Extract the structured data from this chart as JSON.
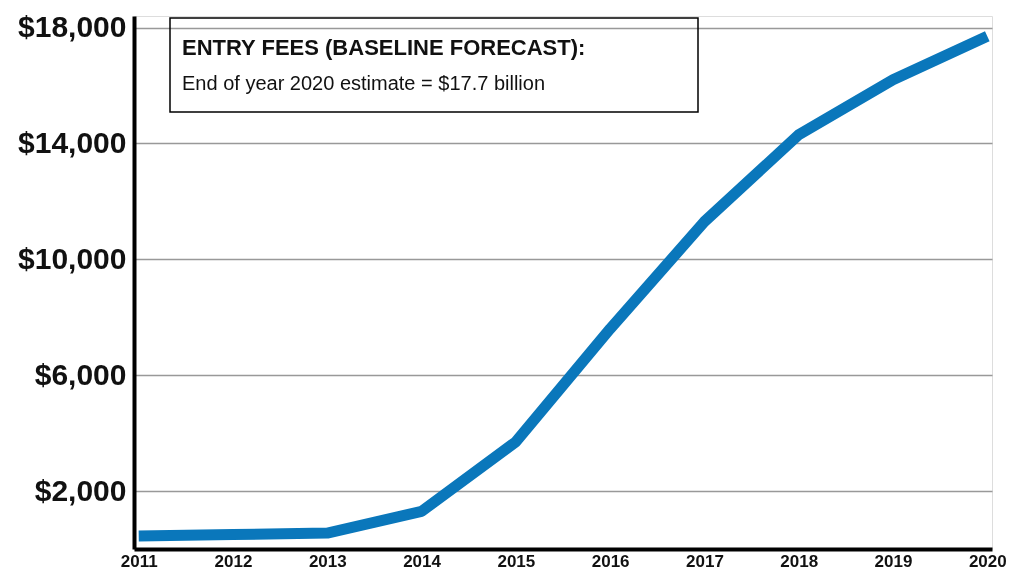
{
  "chart_data": {
    "type": "line",
    "title": "ENTRY FEES (BASELINE FORECAST):",
    "subtitle": "End of year 2020 estimate = $17.7 billion",
    "categories": [
      "2011",
      "2012",
      "2013",
      "2014",
      "2015",
      "2016",
      "2017",
      "2018",
      "2019",
      "2020"
    ],
    "series": [
      {
        "color": "#0a77bb",
        "values": [
          450,
          500,
          550,
          1300,
          3700,
          7600,
          11300,
          14300,
          16200,
          17700
        ]
      }
    ],
    "ylim": [
      0,
      18400
    ],
    "yticks": [
      {
        "value": 2000,
        "label": "$2,000"
      },
      {
        "value": 6000,
        "label": "$6,000"
      },
      {
        "value": 10000,
        "label": "$10,000"
      },
      {
        "value": 14000,
        "label": "$14,000"
      },
      {
        "value": 18000,
        "label": "$18,000"
      }
    ],
    "grid": "y",
    "line_style": "solid"
  }
}
